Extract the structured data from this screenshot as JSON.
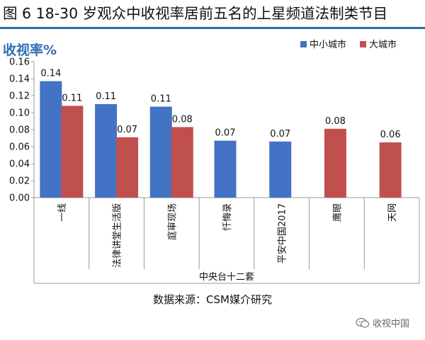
{
  "header": {
    "title": "图 6 18-30 岁观众中收视率居前五名的上星频道法制类节目"
  },
  "footer": {
    "source": "数据来源：CSM媒介研究",
    "watermark": "收视中国"
  },
  "chart_data": {
    "type": "bar",
    "title": "图 6 18-30 岁观众中收视率居前五名的上星频道法制类节目",
    "ylabel": "收视率%",
    "xlabel": "中央台十二套",
    "ylim": [
      0,
      0.16
    ],
    "yticks": [
      "0.00",
      "0.02",
      "0.04",
      "0.06",
      "0.08",
      "0.10",
      "0.12",
      "0.14",
      "0.16"
    ],
    "categories": [
      "一线",
      "法律讲堂生活版",
      "庭审现场",
      "忏悔录",
      "平安中国2017",
      "鹰眼",
      "天网"
    ],
    "series": [
      {
        "name": "中小城市",
        "color": "#4472c4",
        "values": [
          0.137,
          0.11,
          0.107,
          0.067,
          0.066,
          null,
          null
        ],
        "labels": [
          "0.14",
          "0.11",
          "0.11",
          "0.07",
          "0.07",
          null,
          null
        ]
      },
      {
        "name": "大城市",
        "color": "#c0504d",
        "values": [
          0.108,
          0.071,
          0.083,
          null,
          null,
          0.081,
          0.065
        ],
        "labels": [
          "0.11",
          "0.07",
          "0.08",
          null,
          null,
          "0.08",
          "0.06"
        ]
      }
    ],
    "legend_position": "top-right",
    "grid": false
  }
}
